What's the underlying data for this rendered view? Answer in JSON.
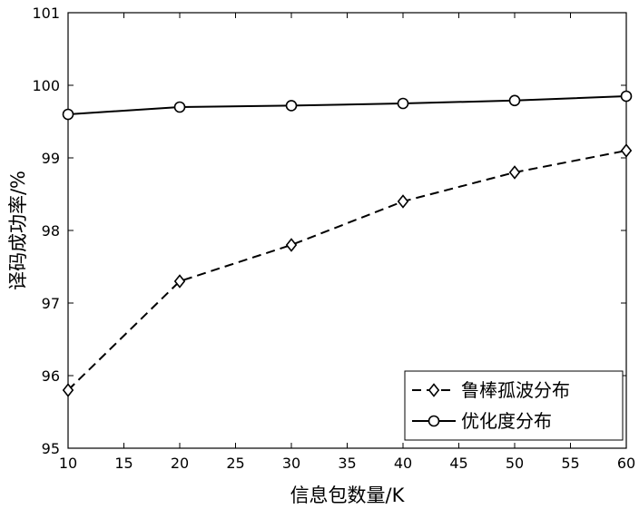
{
  "chart_data": {
    "type": "line",
    "title": "",
    "xlabel": "信息包数量/K",
    "ylabel": "译码成功率/%",
    "xlim": [
      10,
      60
    ],
    "ylim": [
      95,
      101
    ],
    "xticks": [
      "10",
      "15",
      "20",
      "25",
      "30",
      "35",
      "40",
      "45",
      "50",
      "55",
      "60"
    ],
    "yticks": [
      "95",
      "96",
      "97",
      "98",
      "99",
      "100",
      "101"
    ],
    "grid": false,
    "legend_position": "bottom-right",
    "x": [
      10,
      20,
      30,
      40,
      50,
      60
    ],
    "series": [
      {
        "name": "鲁棒孤波分布",
        "values": [
          95.8,
          97.3,
          97.8,
          98.4,
          98.8,
          99.1
        ],
        "line_style": "dashed",
        "marker": "diamond",
        "color": "#000000"
      },
      {
        "name": "优化度分布",
        "values": [
          99.6,
          99.7,
          99.72,
          99.75,
          99.79,
          99.85
        ],
        "line_style": "solid",
        "marker": "circle",
        "color": "#000000"
      }
    ]
  }
}
